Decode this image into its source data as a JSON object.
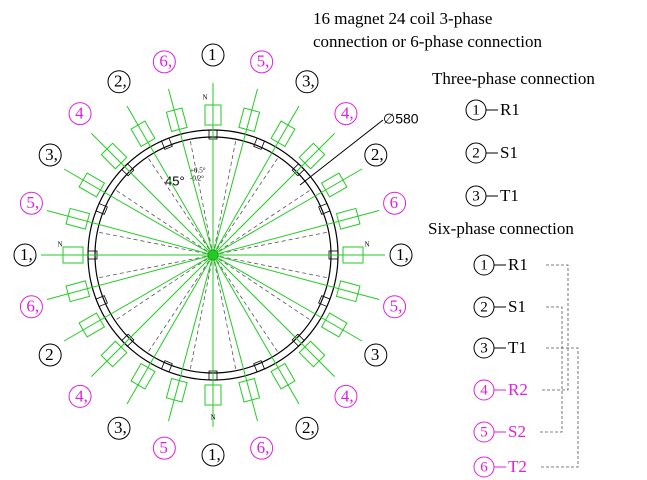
{
  "title": [
    "16 magnet 24 coil 3-phase",
    "connection or 6-phase connection"
  ],
  "rotor_labels": [
    {
      "text": "1",
      "color": "#000000"
    },
    {
      "text": "5,",
      "color": "#e020e0"
    },
    {
      "text": "3,",
      "color": "#000000"
    },
    {
      "text": "4,",
      "color": "#e020e0"
    },
    {
      "text": "2,",
      "color": "#000000"
    },
    {
      "text": "6",
      "color": "#e020e0"
    },
    {
      "text": "1,",
      "color": "#000000"
    },
    {
      "text": "5,",
      "color": "#e020e0"
    },
    {
      "text": "3",
      "color": "#000000"
    },
    {
      "text": "4,",
      "color": "#e020e0"
    },
    {
      "text": "2,",
      "color": "#000000"
    },
    {
      "text": "6,",
      "color": "#e020e0"
    },
    {
      "text": "1,",
      "color": "#000000"
    },
    {
      "text": "5",
      "color": "#e020e0"
    },
    {
      "text": "3,",
      "color": "#000000"
    },
    {
      "text": "4,",
      "color": "#e020e0"
    },
    {
      "text": "2",
      "color": "#000000"
    },
    {
      "text": "6,",
      "color": "#e020e0"
    },
    {
      "text": "1,",
      "color": "#000000"
    },
    {
      "text": "5,",
      "color": "#e020e0"
    },
    {
      "text": "3,",
      "color": "#000000"
    },
    {
      "text": "4",
      "color": "#e020e0"
    },
    {
      "text": "2,",
      "color": "#000000"
    },
    {
      "text": "6,",
      "color": "#e020e0"
    }
  ],
  "pole_labels": [
    "N",
    "N",
    "N",
    "N"
  ],
  "dimension": "∅580",
  "angle": "45°",
  "tolerance_plus": "+0.5°",
  "tolerance_minus": "-0.2°",
  "three_phase": {
    "title": "Three-phase connection",
    "items": [
      {
        "number": "1",
        "name": "R1"
      },
      {
        "number": "2",
        "name": "S1"
      },
      {
        "number": "3",
        "name": "T1"
      }
    ]
  },
  "six_phase": {
    "title": "Six-phase connection",
    "items": [
      {
        "number": "1",
        "name": "R1",
        "color": "#000000"
      },
      {
        "number": "2",
        "name": "S1",
        "color": "#000000"
      },
      {
        "number": "3",
        "name": "T1",
        "color": "#000000"
      },
      {
        "number": "4",
        "name": "R2",
        "color": "#e020e0"
      },
      {
        "number": "5",
        "name": "S2",
        "color": "#e020e0"
      },
      {
        "number": "6",
        "name": "T2",
        "color": "#e020e0"
      }
    ]
  }
}
